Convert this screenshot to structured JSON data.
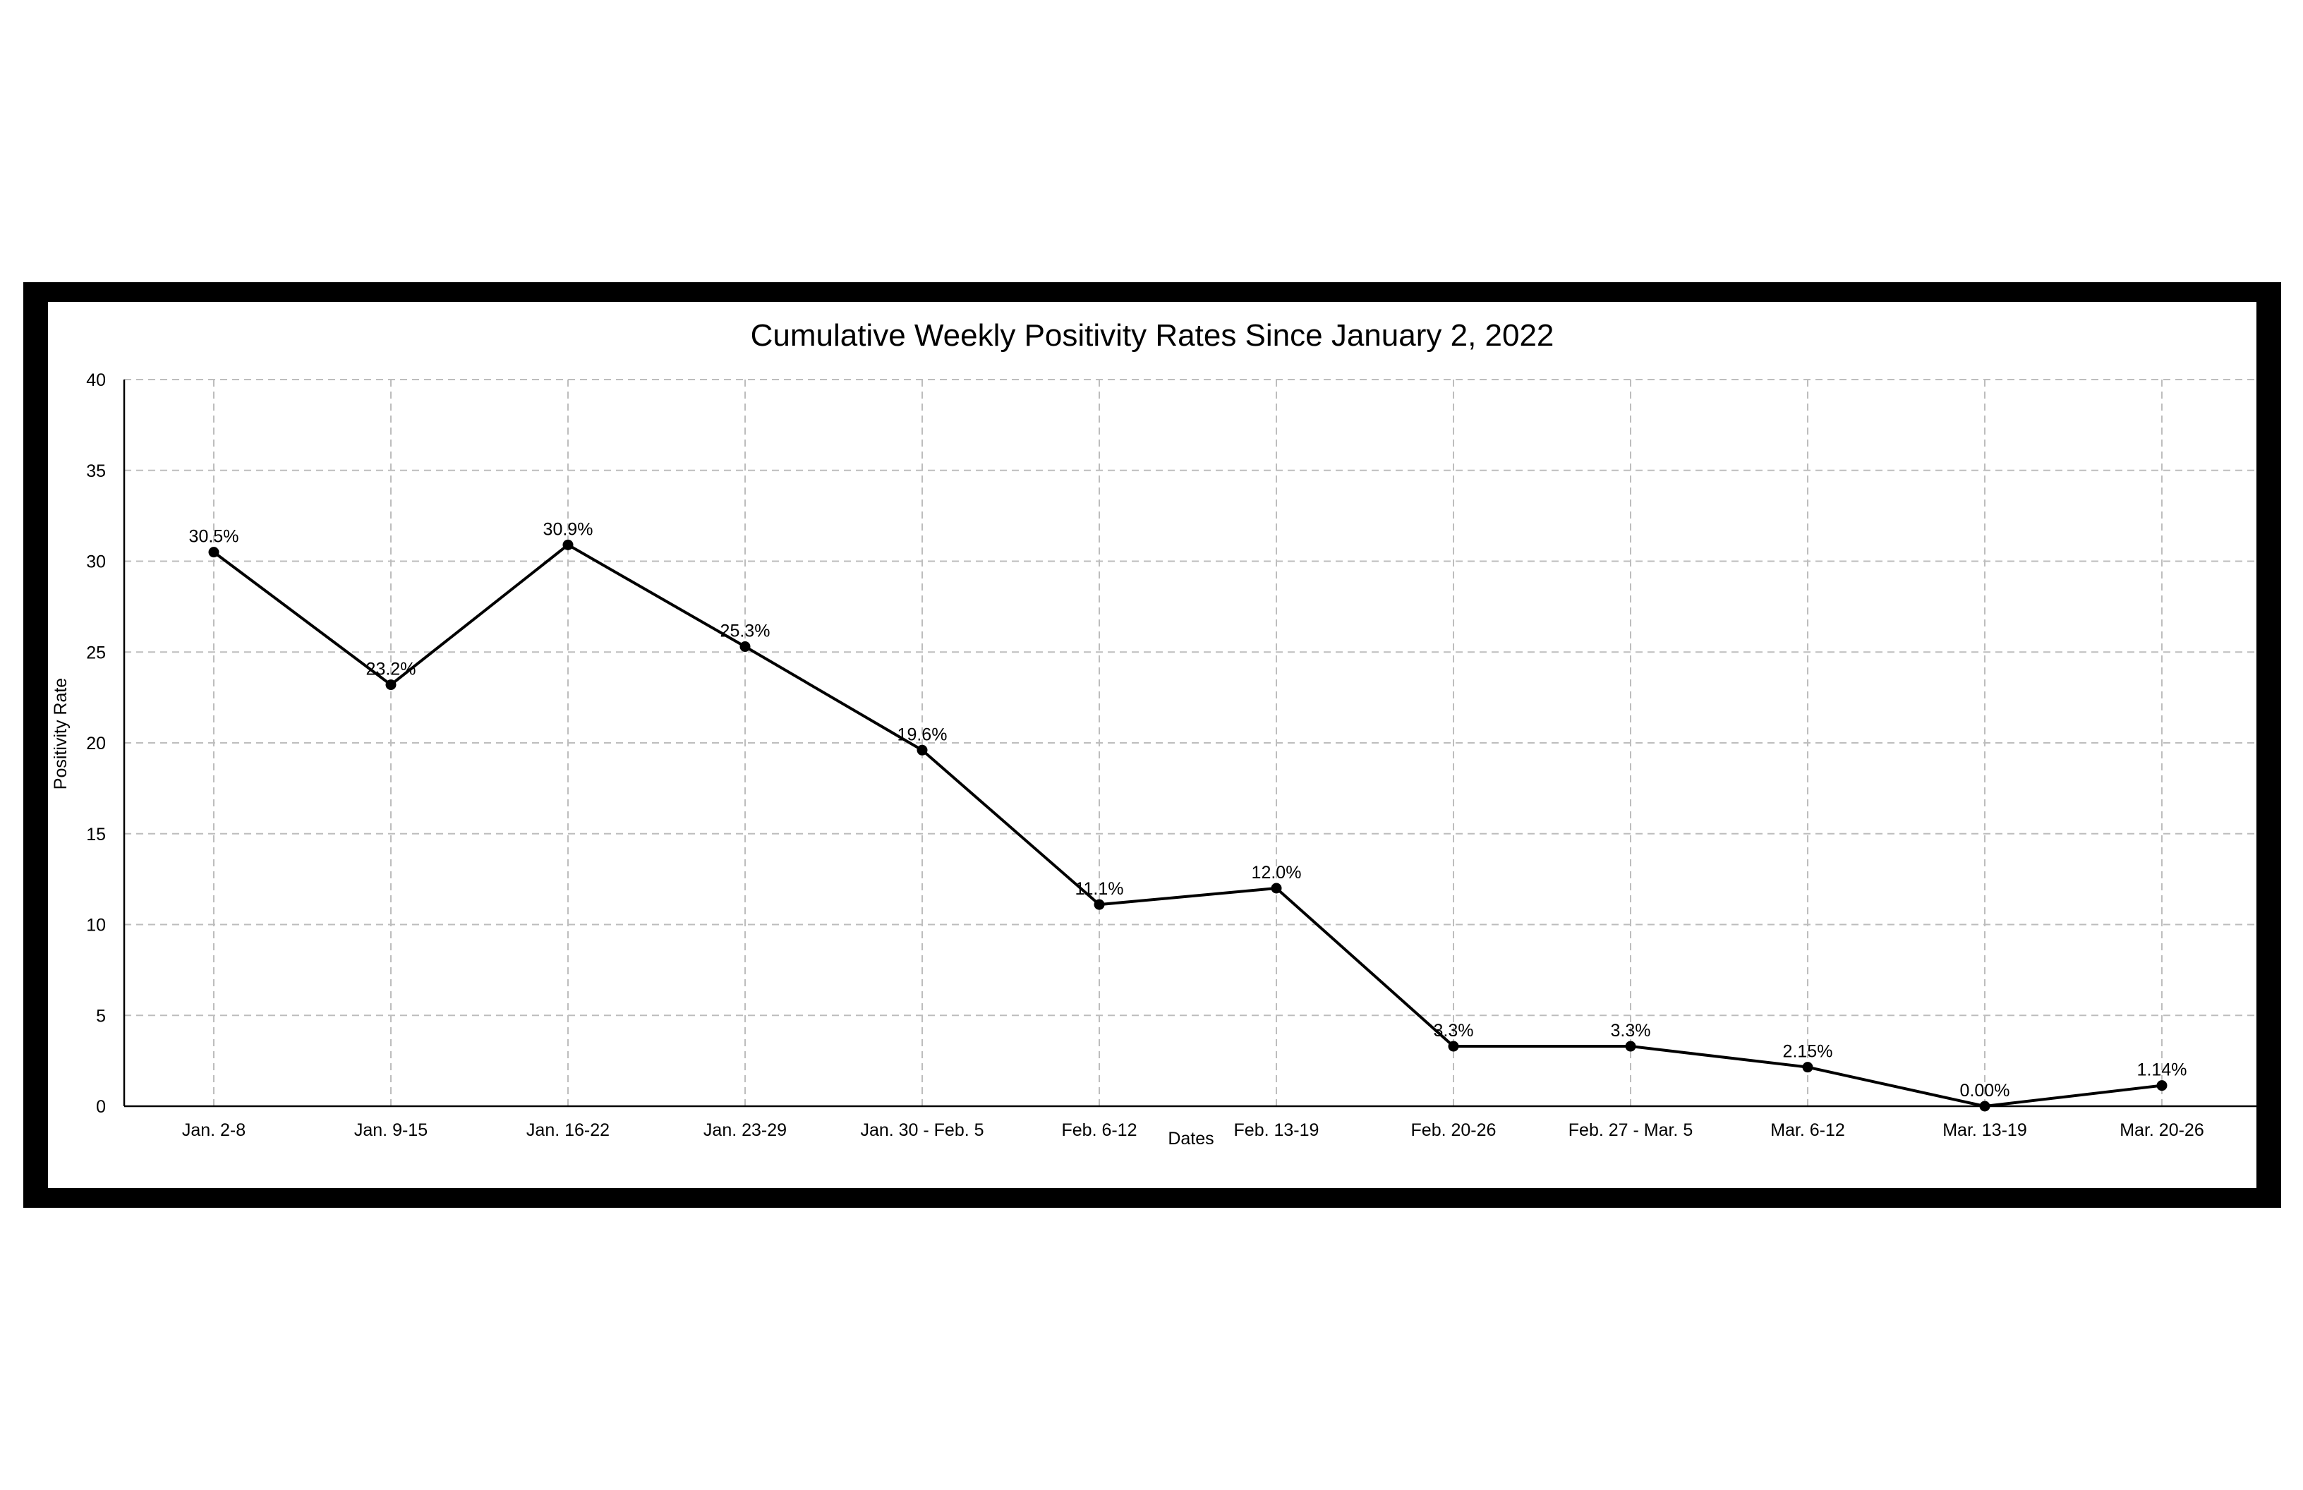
{
  "chart_data": {
    "type": "line",
    "title": "Cumulative Weekly Positivity Rates Since January 2, 2022",
    "xlabel": "Dates",
    "ylabel": "Positivity Rate",
    "categories": [
      "Jan. 2-8",
      "Jan. 9-15",
      "Jan. 16-22",
      "Jan. 23-29",
      "Jan. 30 - Feb. 5",
      "Feb. 6-12",
      "Feb. 13-19",
      "Feb. 20-26",
      "Feb. 27 - Mar. 5",
      "Mar. 6-12",
      "Mar. 13-19",
      "Mar. 20-26"
    ],
    "series": [
      {
        "values": [
          30.5,
          23.2,
          30.9,
          25.3,
          19.6,
          11.1,
          12.0,
          3.3,
          3.3,
          2.15,
          0.0,
          1.14
        ],
        "data_labels": [
          "30.5%",
          "23.2%",
          "30.9%",
          "25.3%",
          "19.6%",
          "11.1%",
          "12.0%",
          "3.3%",
          "3.3%",
          "2.15%",
          "0.00%",
          "1.14%"
        ]
      }
    ],
    "ylim": [
      0,
      40
    ],
    "yticks": [
      0,
      5,
      10,
      15,
      20,
      25,
      30,
      35,
      40
    ],
    "grid": true,
    "legend": "none",
    "colors": {
      "line": "#000000",
      "grid": "#bdbdbd",
      "frame": "#000000",
      "background": "#ffffff"
    }
  }
}
